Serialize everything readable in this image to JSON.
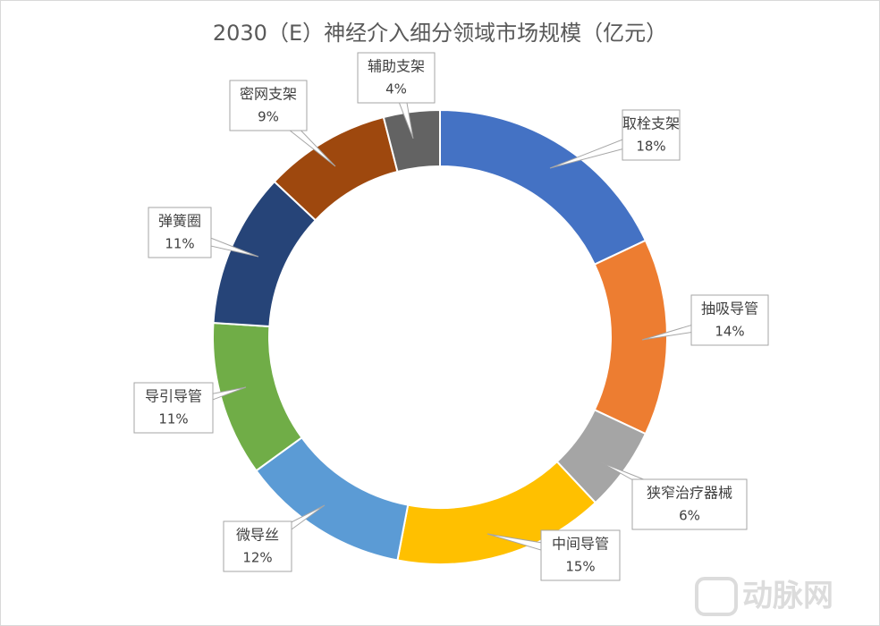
{
  "chart_data": {
    "type": "donut",
    "title": "2030（E）神经介入细分领域市场规模（亿元）",
    "categories": [
      "取栓支架",
      "抽吸导管",
      "狭窄治疗器械",
      "中间导管",
      "微导丝",
      "导引导管",
      "弹簧圈",
      "密网支架",
      "辅助支架"
    ],
    "values": [
      18,
      14,
      6,
      15,
      12,
      11,
      11,
      9,
      4
    ],
    "value_labels": [
      "18%",
      "14%",
      "6%",
      "15%",
      "12%",
      "11%",
      "11%",
      "9%",
      "4%"
    ],
    "colors": [
      "#4472c4",
      "#ed7d31",
      "#a5a5a5",
      "#ffc000",
      "#5b9bd5",
      "#70ad47",
      "#264478",
      "#9e480e",
      "#636363"
    ]
  },
  "watermark": "动脉网"
}
